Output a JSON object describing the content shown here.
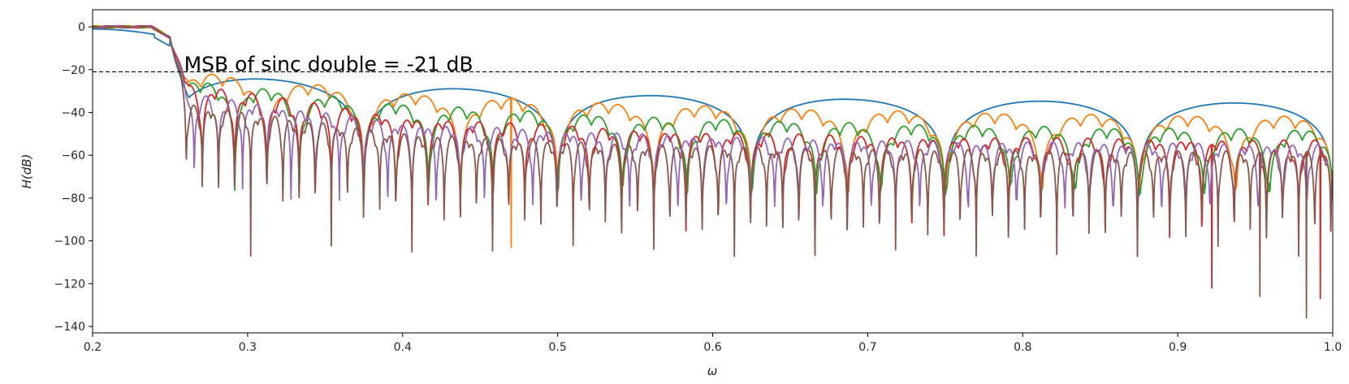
{
  "chart_data": {
    "type": "line",
    "title": "",
    "xlabel": "ω",
    "ylabel": "H(dB)",
    "xlim": [
      0.2,
      1.0
    ],
    "ylim": [
      -143,
      8
    ],
    "x_ticks": [
      0.2,
      0.3,
      0.4,
      0.5,
      0.6,
      0.7,
      0.8,
      0.9,
      1.0
    ],
    "x_tick_labels": [
      "0.2",
      "0.3",
      "0.4",
      "0.5",
      "0.6",
      "0.7",
      "0.8",
      "0.9",
      "1.0"
    ],
    "y_ticks": [
      0,
      -20,
      -40,
      -60,
      -80,
      -100,
      -120,
      -140
    ],
    "y_tick_labels": [
      "0",
      "−20",
      "−40",
      "−60",
      "−80",
      "−100",
      "−120",
      "−140"
    ],
    "grid": false,
    "cutoff": 0.25,
    "reference_line": {
      "y": -21,
      "style": "dashed",
      "color": "#000000"
    },
    "annotation": {
      "text": "MSB of sinc double = -21 dB",
      "x": 0.259,
      "y": -21
    },
    "series": [
      {
        "color": "#1f77b4",
        "lobe_period": 0.125,
        "sidelobe_peaks_db": [
          -22,
          -28,
          -32,
          -34,
          -35,
          -36
        ],
        "null_floor_db": -78,
        "passband_shape": "rolloff"
      },
      {
        "color": "#ff7f0e",
        "lobe_period": 0.0625,
        "sidelobe_peaks_db": [
          -20,
          -31,
          -36,
          -39,
          -41,
          -42
        ],
        "null_floor_db": -75
      },
      {
        "color": "#2ca02c",
        "lobe_period": 0.0417,
        "sidelobe_peaks_db": [
          -24,
          -36,
          -42,
          -45,
          -47,
          -48
        ],
        "null_floor_db": -75
      },
      {
        "color": "#d62728",
        "lobe_period": 0.0208,
        "sidelobe_peaks_db": [
          -25,
          -42,
          -48,
          -51,
          -52,
          -53
        ],
        "null_floor_db": -100
      },
      {
        "color": "#9467bd",
        "lobe_period": 0.0156,
        "sidelobe_peaks_db": [
          -30,
          -45,
          -50,
          -53,
          -54,
          -55
        ],
        "null_floor_db": -82
      },
      {
        "color": "#8c564b",
        "lobe_period": 0.0104,
        "sidelobe_peaks_db": [
          -35,
          -50,
          -55,
          -57,
          -58,
          -58
        ],
        "null_floor_db": -105
      }
    ],
    "deep_nulls": [
      {
        "series": 1,
        "x": 0.47,
        "y": -103
      },
      {
        "series": 5,
        "x": 0.983,
        "y": -136
      },
      {
        "series": 3,
        "x": 0.992,
        "y": -127
      },
      {
        "series": 5,
        "x": 0.953,
        "y": -126
      },
      {
        "series": 3,
        "x": 0.922,
        "y": -122
      }
    ]
  }
}
